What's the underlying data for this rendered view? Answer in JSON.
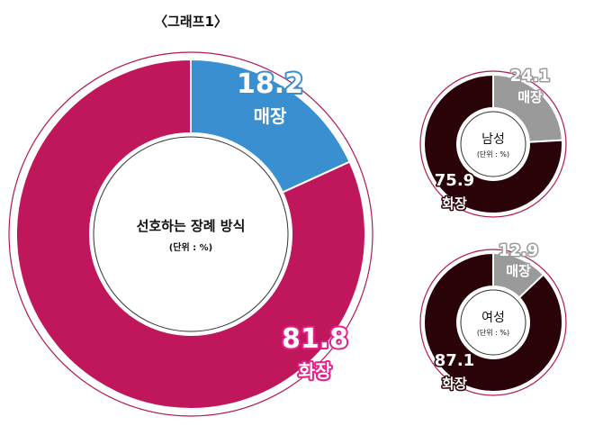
{
  "figure_title": "〈그래프1〉",
  "colors": {
    "total_store": "#3a8fd0",
    "total_cremation": "#c0175c",
    "small_store": "#9a9a9a",
    "small_cremation": "#2a0308",
    "cremation_label": "#e4208a"
  },
  "chart_data": [
    {
      "type": "pie",
      "center_title": "선호하는 장례 방식",
      "center_unit": "(단위 : %)",
      "slices": [
        {
          "label": "매장",
          "value": 18.2,
          "value_text": "18.2"
        },
        {
          "label": "화장",
          "value": 81.8,
          "value_text": "81.8"
        }
      ]
    },
    {
      "type": "pie",
      "center_title": "남성",
      "center_unit": "(단위 : %)",
      "slices": [
        {
          "label": "매장",
          "value": 24.1,
          "value_text": "24.1"
        },
        {
          "label": "화장",
          "value": 75.9,
          "value_text": "75.9"
        }
      ]
    },
    {
      "type": "pie",
      "center_title": "여성",
      "center_unit": "(단위 : %)",
      "slices": [
        {
          "label": "매장",
          "value": 12.9,
          "value_text": "12.9"
        },
        {
          "label": "화장",
          "value": 87.1,
          "value_text": "87.1"
        }
      ]
    }
  ]
}
